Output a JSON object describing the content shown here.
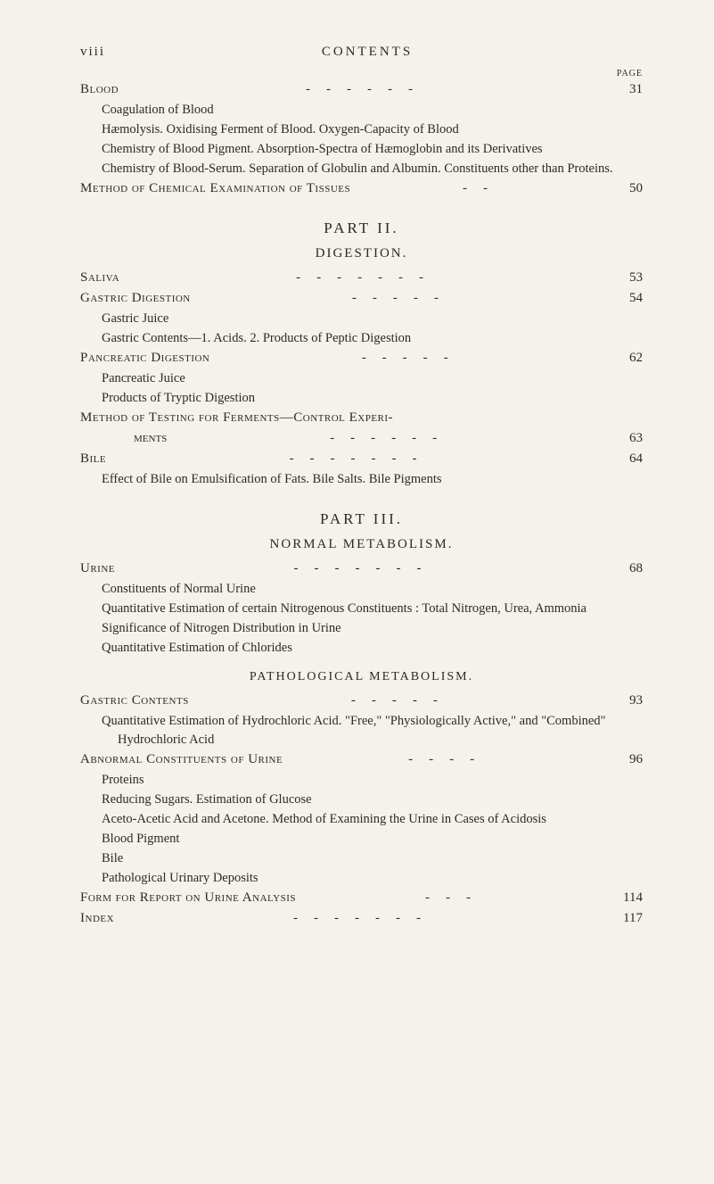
{
  "header": {
    "roman": "viii",
    "title": "CONTENTS",
    "page_label": "PAGE"
  },
  "entries": [
    {
      "type": "main",
      "text": "Blood",
      "page": "31",
      "dashes": "------"
    },
    {
      "type": "sub",
      "text": "Coagulation of Blood"
    },
    {
      "type": "sub",
      "text": "Hæmolysis. Oxidising Ferment of Blood. Oxygen-Capacity of Blood"
    },
    {
      "type": "sub",
      "text": "Chemistry of Blood Pigment. Absorption-Spectra of Hæmoglobin and its Derivatives"
    },
    {
      "type": "sub",
      "text": "Chemistry of Blood-Serum. Separation of Globulin and Albumin. Constituents other than Proteins."
    },
    {
      "type": "main",
      "text": "Method of Chemical Examination of Tissues",
      "page": "50",
      "dashes": "--"
    },
    {
      "type": "part",
      "text": "PART II."
    },
    {
      "type": "section",
      "text": "DIGESTION."
    },
    {
      "type": "main",
      "text": "Saliva",
      "page": "53",
      "dashes": "-------"
    },
    {
      "type": "main",
      "text": "Gastric Digestion",
      "page": "54",
      "dashes": "-----"
    },
    {
      "type": "sub",
      "text": "Gastric Juice"
    },
    {
      "type": "sub",
      "text": "Gastric Contents—1. Acids. 2. Products of Peptic Digestion"
    },
    {
      "type": "main",
      "text": "Pancreatic Digestion",
      "page": "62",
      "dashes": "-----"
    },
    {
      "type": "sub",
      "text": "Pancreatic Juice"
    },
    {
      "type": "sub",
      "text": "Products of Tryptic Digestion"
    },
    {
      "type": "main-split",
      "text": "Method of Testing for Ferments—Control Experi-",
      "cont": "ments",
      "page": "63",
      "dashes": "------"
    },
    {
      "type": "main",
      "text": "Bile",
      "page": "64",
      "dashes": "-------"
    },
    {
      "type": "sub",
      "text": "Effect of Bile on Emulsification of Fats. Bile Salts. Bile Pigments"
    },
    {
      "type": "part",
      "text": "PART III."
    },
    {
      "type": "section",
      "text": "NORMAL METABOLISM."
    },
    {
      "type": "main",
      "text": "Urine",
      "page": "68",
      "dashes": "-------"
    },
    {
      "type": "sub",
      "text": "Constituents of Normal Urine"
    },
    {
      "type": "sub",
      "text": "Quantitative Estimation of certain Nitrogenous Constituents : Total Nitrogen, Urea, Ammonia"
    },
    {
      "type": "sub",
      "text": "Significance of Nitrogen Distribution in Urine"
    },
    {
      "type": "sub",
      "text": "Quantitative Estimation of Chlorides"
    },
    {
      "type": "section-sub",
      "text": "PATHOLOGICAL METABOLISM."
    },
    {
      "type": "main",
      "text": "Gastric Contents",
      "page": "93",
      "dashes": "-----"
    },
    {
      "type": "sub",
      "text": "Quantitative Estimation of Hydrochloric Acid. \"Free,\" \"Physiologically Active,\" and \"Combined\" Hydrochloric Acid"
    },
    {
      "type": "main",
      "text": "Abnormal Constituents of Urine",
      "page": "96",
      "dashes": "----"
    },
    {
      "type": "sub",
      "text": "Proteins"
    },
    {
      "type": "sub",
      "text": "Reducing Sugars. Estimation of Glucose"
    },
    {
      "type": "sub",
      "text": "Aceto-Acetic Acid and Acetone. Method of Examining the Urine in Cases of Acidosis"
    },
    {
      "type": "sub",
      "text": "Blood Pigment"
    },
    {
      "type": "sub",
      "text": "Bile"
    },
    {
      "type": "sub",
      "text": "Pathological Urinary Deposits"
    },
    {
      "type": "main",
      "text": "Form for Report on Urine Analysis",
      "page": "114",
      "dashes": "---"
    },
    {
      "type": "main",
      "text": "Index",
      "page": "117",
      "dashes": "-------"
    }
  ]
}
